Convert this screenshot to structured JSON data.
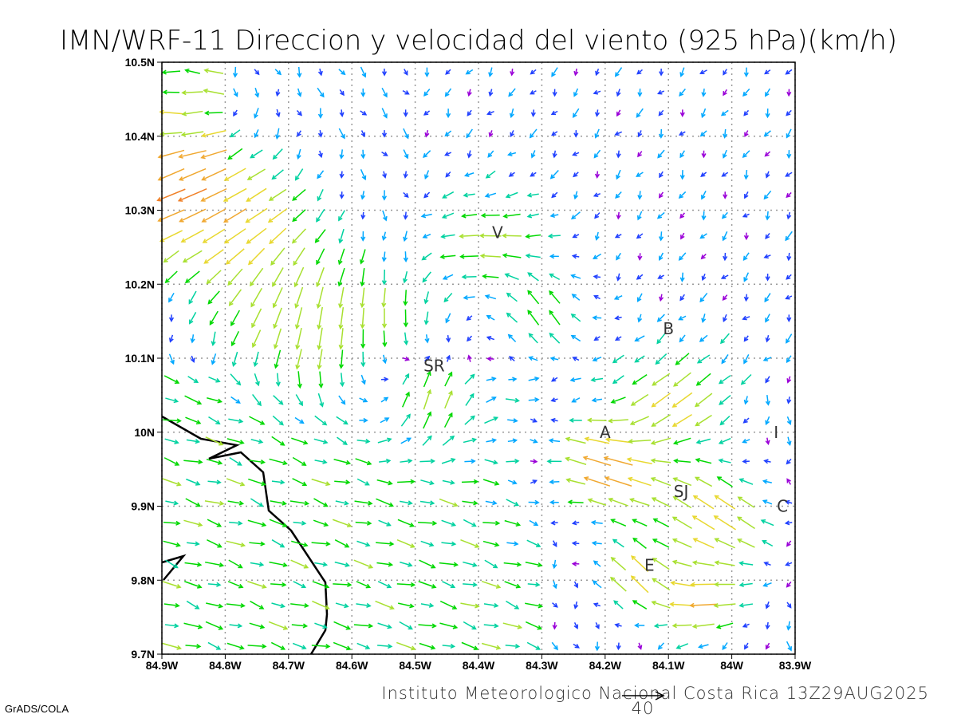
{
  "title": "IMN/WRF-11 Direccion y velocidad del viento (925 hPa)(km/h)",
  "footer": "Instituto Meteorologico Nacional Costa Rica 13Z29AUG2025",
  "credit": "GrADS/COLA",
  "scale_vector": {
    "label": "40",
    "value_kmh": 40
  },
  "axes": {
    "x_ticks": [
      "84.9W",
      "84.8W",
      "84.7W",
      "84.6W",
      "84.5W",
      "84.4W",
      "84.3W",
      "84.2W",
      "84.1W",
      "84W",
      "83.9W"
    ],
    "y_ticks": [
      "10.5N",
      "10.4N",
      "10.3N",
      "10.2N",
      "10.1N",
      "10N",
      "9.9N",
      "9.8N",
      "9.7N"
    ],
    "lon_range": [
      -84.9,
      -83.9
    ],
    "lat_range": [
      9.7,
      10.5
    ]
  },
  "places": [
    {
      "label": "V",
      "lon": -84.37,
      "lat": 10.27
    },
    {
      "label": "B",
      "lon": -84.1,
      "lat": 10.14
    },
    {
      "label": "SR",
      "lon": -84.47,
      "lat": 10.09
    },
    {
      "label": "A",
      "lon": -84.2,
      "lat": 10.0
    },
    {
      "label": "I",
      "lon": -83.93,
      "lat": 10.0
    },
    {
      "label": "SJ",
      "lon": -84.08,
      "lat": 9.92
    },
    {
      "label": "C",
      "lon": -83.92,
      "lat": 9.9
    },
    {
      "label": "E",
      "lon": -84.13,
      "lat": 9.82
    }
  ],
  "speed_colors": [
    "#9a00d8",
    "#2040ff",
    "#00a8ff",
    "#00d2a0",
    "#00d800",
    "#a8e030",
    "#e8d830",
    "#f0a830",
    "#f08028",
    "#f02848"
  ]
}
